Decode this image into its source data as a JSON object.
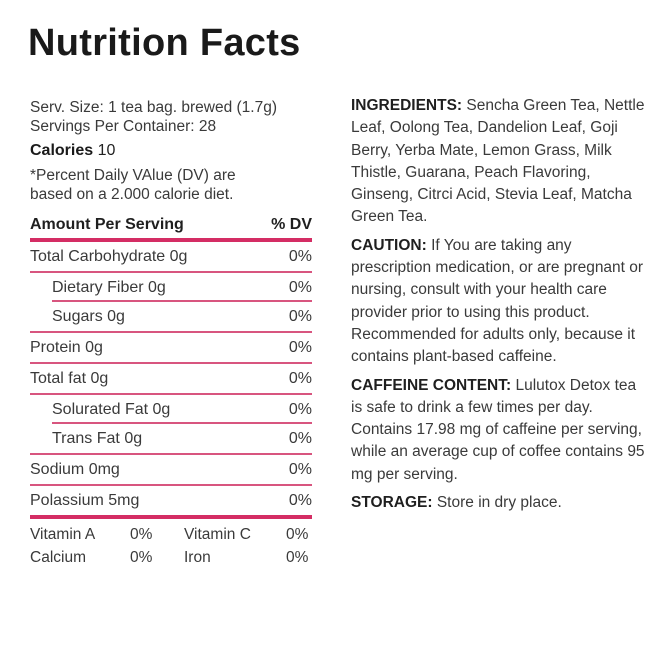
{
  "title": "Nutrition Facts",
  "serving": {
    "size": "Serv. Size: 1 tea bag. brewed (1.7g)",
    "per_container": "Servings Per Container: 28",
    "calories_label": "Calories",
    "calories_value": "10",
    "dv_note_line1": "*Percent Daily VAlue (DV) are",
    "dv_note_line2": "based on a 2.000 calorie diet."
  },
  "table": {
    "header_left": "Amount Per Serving",
    "header_right": "% DV",
    "rows": [
      {
        "label": "Total Carbohydrate 0g",
        "dv": "0%",
        "indent": false
      },
      {
        "label": "Dietary Fiber 0g",
        "dv": "0%",
        "indent": true
      },
      {
        "label": "Sugars 0g",
        "dv": "0%",
        "indent": true
      },
      {
        "label": "Protein 0g",
        "dv": "0%",
        "indent": false
      },
      {
        "label": "Total fat 0g",
        "dv": "0%",
        "indent": false
      },
      {
        "label": "Solurated Fat 0g",
        "dv": "0%",
        "indent": true
      },
      {
        "label": "Trans Fat 0g",
        "dv": "0%",
        "indent": true
      },
      {
        "label": "Sodium 0mg",
        "dv": "0%",
        "indent": false
      },
      {
        "label": "Polassium 5mg",
        "dv": "0%",
        "indent": false
      }
    ],
    "vitamins": [
      {
        "name": "Vitamin A",
        "dv": "0%"
      },
      {
        "name": "Vitamin C",
        "dv": "0%"
      },
      {
        "name": "Calcium",
        "dv": "0%"
      },
      {
        "name": "Iron",
        "dv": "0%"
      }
    ]
  },
  "info": {
    "ingredients_label": "INGREDIENTS:",
    "ingredients_text": " Sencha Green Tea, Nettle Leaf, Oolong Tea, Dandelion Leaf, Goji Berry, Yerba Mate, Lemon Grass, Milk Thistle, Guarana, Peach Flavoring, Ginseng, Citrci Acid, Stevia Leaf, Matcha Green Tea.",
    "caution_label": "CAUTION:",
    "caution_text": " If You are taking any prescription medication, or are pregnant or nursing, consult with your health care provider prior to using this product. Recommended for adults only, because it contains plant-based caffeine.",
    "caffeine_label": "CAFFEINE CONTENT:",
    "caffeine_text": " Lulutox Detox tea is safe to drink a few times per day. Contains 17.98 mg of caffeine per serving, while an average cup of coffee contains 95 mg per serving.",
    "storage_label": "STORAGE:",
    "storage_text": " Store in dry place."
  },
  "colors": {
    "accent": "#d42d64",
    "text": "#3a3a3a",
    "heading": "#1a1a1a"
  }
}
